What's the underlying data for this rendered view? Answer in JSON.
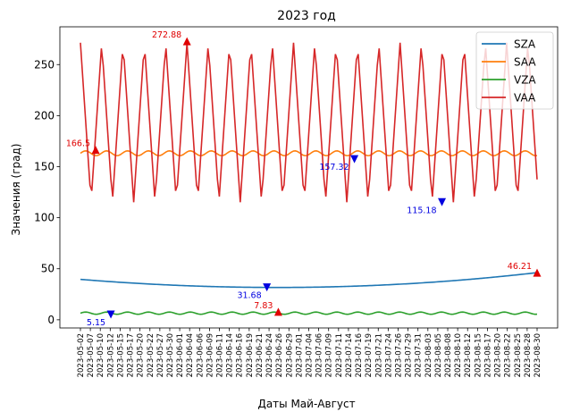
{
  "chart_data": {
    "type": "line",
    "title": "2023 год",
    "xlabel": "Даты Май-Август",
    "ylabel": "Значения (град)",
    "ylim": [
      -8,
      287
    ],
    "yticks": [
      0,
      50,
      100,
      150,
      200,
      250
    ],
    "x_start": "2023-05-02",
    "x_end": "2023-08-30",
    "x_tick_labels": [
      "2023-05-02",
      "2023-05-07",
      "2023-05-10",
      "2023-05-12",
      "2023-05-15",
      "2023-05-17",
      "2023-05-20",
      "2023-05-22",
      "2023-05-27",
      "2023-05-30",
      "2023-06-01",
      "2023-06-04",
      "2023-06-06",
      "2023-06-09",
      "2023-06-11",
      "2023-06-14",
      "2023-06-16",
      "2023-06-19",
      "2023-06-21",
      "2023-06-24",
      "2023-06-26",
      "2023-06-29",
      "2023-07-01",
      "2023-07-04",
      "2023-07-06",
      "2023-07-09",
      "2023-07-11",
      "2023-07-14",
      "2023-07-16",
      "2023-07-19",
      "2023-07-21",
      "2023-07-24",
      "2023-07-26",
      "2023-07-29",
      "2023-07-31",
      "2023-08-03",
      "2023-08-05",
      "2023-08-08",
      "2023-08-10",
      "2023-08-12",
      "2023-08-15",
      "2023-08-17",
      "2023-08-20",
      "2023-08-22",
      "2023-08-25",
      "2023-08-28",
      "2023-08-30"
    ],
    "grid": false,
    "legend_position": "top-right",
    "series": [
      {
        "name": "SZA",
        "color": "#1f77b4",
        "min": 31.68,
        "max": 46.21
      },
      {
        "name": "SAA",
        "color": "#ff7f0e",
        "min": 157.32,
        "max": 166.5
      },
      {
        "name": "VZA",
        "color": "#2ca02c",
        "min": 5.15,
        "max": 7.83
      },
      {
        "name": "VAA",
        "color": "#d62728",
        "min": 115.18,
        "max": 272.88
      }
    ],
    "annotations": [
      {
        "text": "272.88",
        "date": "2023-05-30",
        "y": 272.88,
        "kind": "max",
        "color": "#e00000"
      },
      {
        "text": "166.5",
        "date": "2023-05-06",
        "y": 166.5,
        "kind": "max",
        "color": "#e00000"
      },
      {
        "text": "157.32",
        "date": "2023-07-13",
        "y": 157.32,
        "kind": "min",
        "color": "#0000e0"
      },
      {
        "text": "115.18",
        "date": "2023-08-05",
        "y": 115.18,
        "kind": "min",
        "color": "#0000e0"
      },
      {
        "text": "31.68",
        "date": "2023-06-20",
        "y": 31.68,
        "kind": "min",
        "color": "#0000e0"
      },
      {
        "text": "46.21",
        "date": "2023-08-30",
        "y": 46.21,
        "kind": "max",
        "color": "#e00000"
      },
      {
        "text": "7.83",
        "date": "2023-06-23",
        "y": 7.83,
        "kind": "max",
        "color": "#e00000"
      },
      {
        "text": "5.15",
        "date": "2023-05-10",
        "y": 5.15,
        "kind": "min",
        "color": "#0000e0"
      }
    ]
  }
}
